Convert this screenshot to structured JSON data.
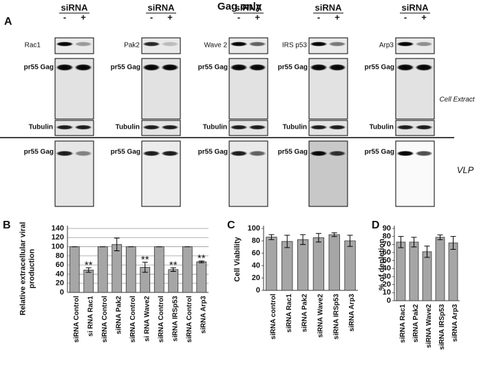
{
  "title": "Gag only",
  "panels": {
    "a": "A",
    "b": "B",
    "c": "C",
    "d": "D"
  },
  "side_labels": {
    "cell_extract": "Cell Extract",
    "vlp": "VLP"
  },
  "blots": [
    {
      "header": "siRNA",
      "minus": "-",
      "plus": "+",
      "target": "Rac1",
      "gag": "pr55 Gag",
      "tubulin": "Tubulin",
      "vlp": "pr55 Gag"
    },
    {
      "header": "siRNA",
      "minus": "-",
      "plus": "+",
      "target": "Pak2",
      "gag": "pr55 Gag",
      "tubulin": "Tubulin",
      "vlp": "pr55 Gag"
    },
    {
      "header": "siRNA",
      "minus": "-",
      "plus": "+",
      "target": "Wave 2",
      "gag": "pr55 Gag",
      "tubulin": "Tubulin",
      "vlp": "pr55 Gag"
    },
    {
      "header": "siRNA",
      "minus": "-",
      "plus": "+",
      "target": "IRS p53",
      "gag": "pr55 Gag",
      "tubulin": "Tubulin",
      "vlp": "pr55 Gag"
    },
    {
      "header": "siRNA",
      "minus": "-",
      "plus": "+",
      "target": "Arp3",
      "gag": "pr55 Gag",
      "tubulin": "Tubulin",
      "vlp": "pr55 Gag"
    }
  ],
  "chart_data": [
    {
      "type": "bar",
      "ylabel": [
        "Relative extracellular viral",
        "production"
      ],
      "categories": [
        "siRNA Control",
        "si RNA Rac1",
        "siRNA Control",
        "siRNA  Pak2",
        "siRNA Control",
        "si RNA Wave2",
        "siRNA Control",
        "siRNA IRSp53",
        "siRNA Control",
        "siRNA Arp3"
      ],
      "values": [
        100,
        49,
        100,
        105,
        100,
        55,
        100,
        50,
        100,
        67
      ],
      "errors": [
        0,
        5,
        0,
        14,
        0,
        11,
        0,
        4,
        0,
        2
      ],
      "annotations": [
        null,
        "**",
        null,
        null,
        null,
        "**",
        null,
        "**",
        null,
        "**"
      ],
      "color": "#a6a6a6",
      "ylim": [
        0,
        140
      ],
      "yticks": [
        0,
        20,
        40,
        60,
        80,
        100,
        120,
        140
      ],
      "grid": true
    },
    {
      "type": "bar",
      "ylabel": [
        "Cell Viability"
      ],
      "categories": [
        "siRNA control",
        "siRNA Rac1",
        "siRNA Pak2",
        "siRNA Wave2",
        "siRNA IRSp53",
        "siRNA Arp3"
      ],
      "values": [
        86,
        79,
        82,
        85,
        90,
        80
      ],
      "errors": [
        4,
        10,
        8,
        7,
        3,
        9
      ],
      "color": "#a6a6a6",
      "ylim": [
        0,
        100
      ],
      "yticks": [
        0,
        20,
        40,
        60,
        80,
        100
      ],
      "grid": false
    },
    {
      "type": "bar",
      "ylabel": [
        "% of depletion"
      ],
      "categories": [
        "siRNA Rac1",
        "siRNA Pak2",
        "siRNA Wave2",
        "siRNA IRSp53",
        "siRNA Arp3"
      ],
      "values": [
        73,
        73,
        61,
        79,
        72
      ],
      "errors": [
        7,
        6,
        7,
        3,
        8
      ],
      "color": "#a6a6a6",
      "ylim": [
        0,
        90
      ],
      "yticks": [
        0,
        10,
        20,
        30,
        40,
        50,
        60,
        70,
        80,
        90
      ],
      "grid": false
    }
  ]
}
